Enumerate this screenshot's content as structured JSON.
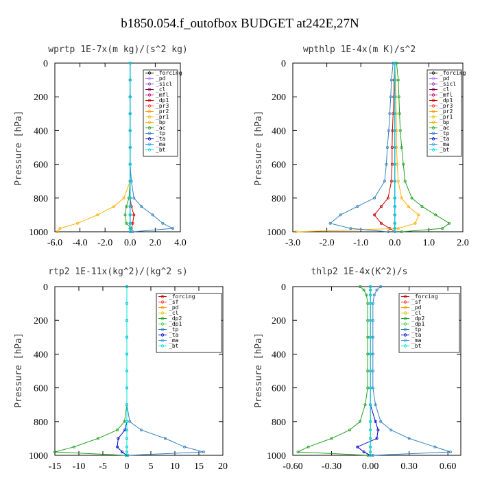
{
  "figure_title": "b1850.054.f_outofbox  BUDGET at242E,27N",
  "chart_data": [
    {
      "type": "line",
      "title": "wprtp   1E-7x(m kg)/(s^2 kg)",
      "ylabel": "Pressure [hPa]",
      "xlim": [
        -6,
        4
      ],
      "ylim": [
        1000,
        0
      ],
      "xticks": [
        "-6.0",
        "-4.0",
        "-2.0",
        "0.0",
        "2.0",
        "4.0"
      ],
      "yticks": [
        "0",
        "200",
        "400",
        "600",
        "800",
        "1000"
      ],
      "legend_position": "top-right",
      "pressure": [
        0,
        100,
        200,
        300,
        400,
        500,
        600,
        700,
        800,
        850,
        900,
        950,
        980,
        1000
      ],
      "series": [
        {
          "name": "_forcing",
          "color": "#000000",
          "x": [
            0,
            0,
            0,
            0,
            0,
            0,
            0,
            0,
            0,
            0,
            0,
            0,
            0,
            0
          ]
        },
        {
          "name": "_pd",
          "color": "#c080ff",
          "x": [
            0,
            0,
            0,
            0,
            0,
            0,
            0,
            0,
            0,
            0,
            0,
            0,
            0,
            0
          ]
        },
        {
          "name": "_sicl",
          "color": "#8040c0",
          "x": [
            0,
            0,
            0,
            0,
            0,
            0,
            0,
            0,
            0,
            0,
            0,
            0,
            0,
            0
          ]
        },
        {
          "name": "_cl",
          "color": "#800040",
          "x": [
            0,
            0,
            0,
            0,
            0,
            0,
            0,
            0,
            0,
            0,
            0,
            0,
            0,
            0
          ]
        },
        {
          "name": "_mfl",
          "color": "#c00060",
          "x": [
            0,
            0,
            0,
            0,
            0,
            0,
            0,
            0,
            0,
            0,
            0,
            0,
            0,
            0
          ]
        },
        {
          "name": "_dp1",
          "color": "#cc0000",
          "x": [
            0,
            0,
            0,
            0,
            0,
            0,
            0,
            0,
            0,
            0.1,
            0.3,
            0.2,
            0.1,
            0
          ]
        },
        {
          "name": "_pr3",
          "color": "#ff3030",
          "x": [
            0,
            0,
            0,
            0,
            0,
            0,
            0,
            0,
            0,
            0,
            0,
            0,
            0,
            0
          ]
        },
        {
          "name": "_pr2",
          "color": "#ff9900",
          "x": [
            0,
            0,
            0,
            0,
            0,
            0,
            0,
            0,
            0,
            0,
            0,
            0,
            0,
            0
          ]
        },
        {
          "name": "_pr1",
          "color": "#e0c000",
          "x": [
            0,
            0,
            0,
            0,
            0,
            0,
            0,
            0,
            0,
            0,
            0,
            0,
            0,
            0
          ]
        },
        {
          "name": "_bp",
          "color": "#ffb000",
          "x": [
            0,
            0,
            0,
            0,
            0,
            0,
            0,
            0,
            -0.5,
            -1.3,
            -2.6,
            -4.2,
            -5.6,
            -5.8
          ]
        },
        {
          "name": "_ac",
          "color": "#20a020",
          "x": [
            0,
            0,
            0,
            0,
            0,
            0,
            0,
            0,
            -0.1,
            -0.3,
            -0.4,
            -0.3,
            0.1,
            0
          ]
        },
        {
          "name": "_tp",
          "color": "#3080c0",
          "x": [
            0,
            0,
            0,
            0,
            0,
            0,
            0,
            0.1,
            0.3,
            0.9,
            1.8,
            2.6,
            3.4,
            0.2
          ]
        },
        {
          "name": "_ta",
          "color": "#0000cc",
          "x": [
            0,
            0,
            0,
            0,
            0,
            0,
            0,
            0,
            0,
            0,
            0,
            0,
            0,
            0
          ]
        },
        {
          "name": "_ma",
          "color": "#40a0ff",
          "x": [
            0,
            0,
            0,
            0,
            0,
            0,
            0,
            0,
            0,
            0,
            0,
            0,
            0,
            0
          ]
        },
        {
          "name": "_bt",
          "color": "#00e0e0",
          "x": [
            0,
            0,
            0,
            0,
            0,
            0,
            0,
            0,
            0,
            0,
            0,
            0,
            0,
            0
          ]
        }
      ]
    },
    {
      "type": "line",
      "title": "wpthlp   1E-4x(m K)/s^2",
      "ylabel": "Pressure [hPa]",
      "xlim": [
        -3,
        2
      ],
      "ylim": [
        1000,
        0
      ],
      "xticks": [
        "-3.0",
        "-2.0",
        "-1.0",
        "0.0",
        "1.0",
        "2.0"
      ],
      "yticks": [
        "0",
        "200",
        "400",
        "600",
        "800",
        "1000"
      ],
      "legend_position": "top-right",
      "pressure": [
        0,
        100,
        200,
        300,
        400,
        500,
        600,
        700,
        800,
        850,
        900,
        950,
        980,
        1000
      ],
      "series": [
        {
          "name": "_forcing",
          "color": "#000000",
          "x": [
            0,
            0,
            0,
            0,
            0,
            0,
            0,
            0,
            0,
            0,
            0,
            0,
            0,
            0
          ]
        },
        {
          "name": "_pd",
          "color": "#c080ff",
          "x": [
            0,
            0,
            0,
            0,
            0,
            0,
            0,
            0,
            0,
            0,
            0,
            0,
            0,
            0
          ]
        },
        {
          "name": "_sicl",
          "color": "#8040c0",
          "x": [
            0,
            0,
            0,
            0,
            0,
            0,
            0,
            0,
            0,
            0,
            0,
            0,
            0,
            0
          ]
        },
        {
          "name": "_cl",
          "color": "#800040",
          "x": [
            0,
            0,
            0,
            0,
            0,
            0,
            0,
            0,
            0,
            0,
            0,
            0,
            0,
            0
          ]
        },
        {
          "name": "_mfl",
          "color": "#c00060",
          "x": [
            0,
            0,
            0,
            0,
            0,
            0,
            0,
            0,
            0,
            0,
            0,
            0,
            0,
            0
          ]
        },
        {
          "name": "_dp1",
          "color": "#cc0000",
          "x": [
            0,
            -0.02,
            -0.03,
            -0.05,
            -0.07,
            -0.08,
            -0.08,
            -0.1,
            -0.2,
            -0.4,
            -0.6,
            -0.4,
            -0.15,
            0
          ]
        },
        {
          "name": "_pr3",
          "color": "#ff3030",
          "x": [
            0,
            0,
            0,
            0,
            0,
            0,
            0,
            0,
            0,
            0,
            0,
            0,
            0,
            0
          ]
        },
        {
          "name": "_pr2",
          "color": "#ff9900",
          "x": [
            0,
            0,
            0,
            0,
            0,
            0,
            0,
            0,
            0,
            0,
            0,
            0,
            0,
            0
          ]
        },
        {
          "name": "_pr1",
          "color": "#e0c000",
          "x": [
            0,
            0,
            0,
            0,
            0,
            0,
            0,
            0,
            0,
            0,
            0,
            0,
            0,
            0
          ]
        },
        {
          "name": "_bp",
          "color": "#ffb000",
          "x": [
            0,
            0.02,
            0.03,
            0.04,
            0.05,
            0.05,
            0.07,
            0.1,
            0.2,
            0.4,
            0.7,
            0.6,
            0.1,
            -2.9
          ]
        },
        {
          "name": "_ac",
          "color": "#20a020",
          "x": [
            0.05,
            0.1,
            0.12,
            0.14,
            0.16,
            0.2,
            0.25,
            0.3,
            0.5,
            0.8,
            1.2,
            1.6,
            1.4,
            0.2
          ]
        },
        {
          "name": "_tp",
          "color": "#3080c0",
          "x": [
            -0.05,
            -0.1,
            -0.12,
            -0.15,
            -0.18,
            -0.22,
            -0.25,
            -0.3,
            -0.6,
            -1.1,
            -1.6,
            -1.9,
            -1.3,
            -0.2
          ]
        },
        {
          "name": "_ta",
          "color": "#0000cc",
          "x": [
            0,
            0,
            0,
            0,
            0,
            0,
            0,
            0,
            0,
            0,
            0,
            0,
            0,
            0
          ]
        },
        {
          "name": "_ma",
          "color": "#40a0ff",
          "x": [
            0,
            0,
            0,
            0,
            0,
            0,
            0,
            0,
            0,
            0,
            0,
            0,
            0,
            0
          ]
        },
        {
          "name": "_bt",
          "color": "#00e0e0",
          "x": [
            0,
            0,
            0,
            0,
            0,
            0,
            0,
            0,
            0,
            0,
            0,
            0,
            0,
            0
          ]
        }
      ]
    },
    {
      "type": "line",
      "title": "rtp2   1E-11x(kg^2)/(kg^2 s)",
      "ylabel": "Pressure [hPa]",
      "xlim": [
        -15,
        20
      ],
      "ylim": [
        1000,
        0
      ],
      "xticks": [
        "-15",
        "-10",
        "-5",
        "0",
        "5",
        "10",
        "15",
        "20"
      ],
      "yticks": [
        "0",
        "200",
        "400",
        "600",
        "800",
        "1000"
      ],
      "legend_position": "top-right",
      "pressure": [
        0,
        100,
        200,
        300,
        400,
        500,
        600,
        700,
        800,
        850,
        900,
        950,
        980,
        1000
      ],
      "series": [
        {
          "name": "_forcing",
          "color": "#cc0000",
          "x": [
            0,
            0,
            0,
            0,
            0,
            0,
            0,
            0,
            0,
            0,
            0,
            0,
            0,
            0
          ]
        },
        {
          "name": "_sf",
          "color": "#ff3030",
          "x": [
            0,
            0,
            0,
            0,
            0,
            0,
            0,
            0,
            0,
            0,
            0,
            0,
            0,
            0
          ]
        },
        {
          "name": "_pd",
          "color": "#ff9900",
          "x": [
            0,
            0,
            0,
            0,
            0,
            0,
            0,
            0,
            0,
            0,
            0,
            0,
            0,
            0
          ]
        },
        {
          "name": "_cl",
          "color": "#e0c000",
          "x": [
            0,
            0,
            0,
            0,
            0,
            0,
            0,
            0,
            0,
            0,
            0,
            0,
            0,
            0
          ]
        },
        {
          "name": "_dp2",
          "color": "#20a020",
          "x": [
            0,
            0,
            0,
            0,
            0,
            0,
            0,
            0,
            -0.5,
            -2,
            -6,
            -11,
            -15,
            -0.2
          ]
        },
        {
          "name": "_dp1",
          "color": "#40d040",
          "x": [
            0,
            0,
            0,
            0,
            0,
            0,
            0,
            0,
            0,
            0,
            0,
            0,
            0,
            0
          ]
        },
        {
          "name": "_tp",
          "color": "#3080c0",
          "x": [
            0,
            0,
            0,
            0,
            0,
            0,
            0,
            0,
            0.6,
            3,
            8,
            12,
            16,
            0.2
          ]
        },
        {
          "name": "_ta",
          "color": "#0000cc",
          "x": [
            0,
            0,
            0,
            0,
            0,
            0,
            0,
            0,
            0,
            -0.4,
            -1.8,
            -2,
            -1,
            0
          ]
        },
        {
          "name": "_ma",
          "color": "#40a0ff",
          "x": [
            0,
            0,
            0,
            0,
            0,
            0,
            0,
            0,
            0,
            0,
            0,
            0,
            0,
            0
          ]
        },
        {
          "name": "_bt",
          "color": "#00e0e0",
          "x": [
            0,
            0,
            0,
            0,
            0,
            0,
            0,
            0,
            0,
            0,
            0,
            0,
            0,
            0
          ]
        }
      ]
    },
    {
      "type": "line",
      "title": "thlp2   1E-4x(K^2)/s",
      "ylabel": "Pressure [hPa]",
      "xlim": [
        -0.6,
        0.7
      ],
      "ylim": [
        1000,
        0
      ],
      "xticks": [
        "-0.60",
        "-0.30",
        "0.00",
        "0.30",
        "0.60"
      ],
      "yticks": [
        "0",
        "200",
        "400",
        "600",
        "800",
        "1000"
      ],
      "legend_position": "top-right",
      "pressure": [
        0,
        20,
        50,
        100,
        200,
        300,
        400,
        500,
        600,
        700,
        800,
        850,
        900,
        950,
        980,
        1000
      ],
      "series": [
        {
          "name": "_forcing",
          "color": "#cc0000",
          "x": [
            0,
            0,
            0,
            0,
            0,
            0,
            0,
            0,
            0,
            0,
            0,
            0,
            0,
            0,
            0,
            0
          ]
        },
        {
          "name": "_sf",
          "color": "#ff3030",
          "x": [
            0,
            0,
            0,
            0,
            0,
            0,
            0,
            0,
            0,
            0,
            0,
            0,
            0,
            0,
            0,
            0
          ]
        },
        {
          "name": "_pd",
          "color": "#ff9900",
          "x": [
            0,
            0,
            0,
            0,
            0,
            0,
            0,
            0,
            0,
            0,
            0,
            0,
            0,
            0,
            0,
            0
          ]
        },
        {
          "name": "_cl",
          "color": "#e0c000",
          "x": [
            0,
            0,
            0,
            0,
            0,
            0,
            0,
            0,
            0,
            0,
            0,
            0,
            0,
            0,
            0,
            0
          ]
        },
        {
          "name": "_dp2",
          "color": "#20a020",
          "x": [
            -0.08,
            -0.05,
            -0.03,
            -0.02,
            -0.02,
            -0.02,
            -0.02,
            -0.02,
            -0.02,
            -0.04,
            -0.08,
            -0.16,
            -0.3,
            -0.48,
            -0.56,
            -0.02
          ]
        },
        {
          "name": "_dp1",
          "color": "#40d040",
          "x": [
            0,
            0,
            0,
            0,
            0,
            0,
            0,
            0,
            0,
            0,
            0,
            0,
            0,
            0,
            0,
            0
          ]
        },
        {
          "name": "_tp",
          "color": "#3080c0",
          "x": [
            0.08,
            0.05,
            0.03,
            0.02,
            0.02,
            0.02,
            0.02,
            0.02,
            0.02,
            0.04,
            0.08,
            0.16,
            0.3,
            0.5,
            0.62,
            0.02
          ]
        },
        {
          "name": "_ta",
          "color": "#0000cc",
          "x": [
            0,
            0,
            0,
            0,
            0,
            0,
            0,
            0,
            0,
            0,
            0.04,
            0.06,
            0.05,
            -0.1,
            -0.05,
            0
          ]
        },
        {
          "name": "_ma",
          "color": "#40a0ff",
          "x": [
            0,
            0,
            0,
            0,
            0,
            0,
            0,
            0,
            0,
            0,
            0,
            0,
            0,
            0,
            0,
            0
          ]
        },
        {
          "name": "_bt",
          "color": "#00e0e0",
          "x": [
            0,
            0,
            0,
            0,
            0,
            0,
            0,
            0,
            0,
            0,
            0,
            0,
            0,
            0,
            0,
            0
          ]
        }
      ]
    }
  ]
}
